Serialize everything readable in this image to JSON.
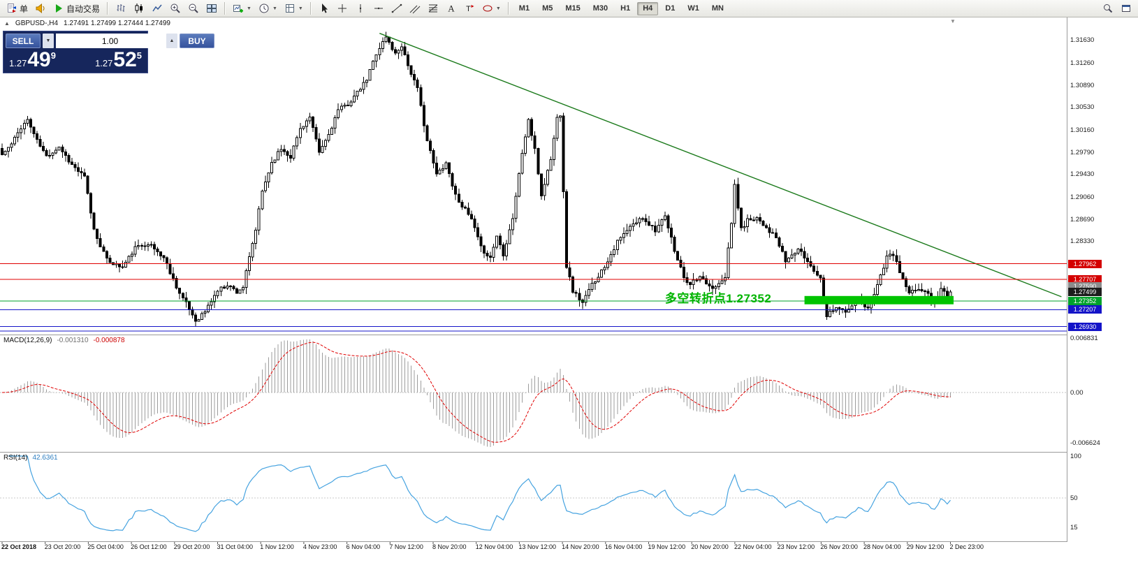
{
  "glyphs": {
    "collapse": "▲",
    "dropdown": "▼",
    "vol_up": "▲",
    "vol_down": "▼",
    "shift_marker": "▼"
  },
  "toolbar": {
    "groups": [
      {
        "name": "trade-group",
        "items": [
          {
            "name": "new-order-button",
            "icon": "new-order-icon",
            "label": "单"
          },
          {
            "name": "alerts-button",
            "icon": "horn-icon"
          },
          {
            "name": "autotrading-button",
            "icon": "play-icon",
            "label": "自动交易"
          }
        ]
      },
      {
        "name": "chart-type-group",
        "items": [
          {
            "name": "bar-chart-button",
            "icon": "bar-chart-icon"
          },
          {
            "name": "candlestick-chart-button",
            "icon": "candlestick-icon"
          },
          {
            "name": "line-chart-button",
            "icon": "line-chart-icon"
          },
          {
            "name": "zoom-in-button",
            "icon": "zoom-in-icon"
          },
          {
            "name": "zoom-out-button",
            "icon": "zoom-out-icon"
          },
          {
            "name": "tile-windows-button",
            "icon": "tile-windows-icon"
          }
        ]
      },
      {
        "name": "chart-manage-group",
        "items": [
          {
            "name": "new-chart-button",
            "icon": "new-chart-icon",
            "dropdown": true
          },
          {
            "name": "profiles-button",
            "icon": "clock-icon",
            "dropdown": true
          },
          {
            "name": "templates-button",
            "icon": "template-icon",
            "dropdown": true
          }
        ]
      },
      {
        "name": "line-studies-group",
        "items": [
          {
            "name": "cursor-button",
            "icon": "cursor-icon"
          },
          {
            "name": "crosshair-button",
            "icon": "crosshair-icon"
          },
          {
            "name": "vertical-line-button",
            "icon": "vline-icon"
          },
          {
            "name": "horizontal-line-button",
            "icon": "hline-icon"
          },
          {
            "name": "trendline-button",
            "icon": "trendline-icon"
          },
          {
            "name": "equidistant-channel-button",
            "icon": "channel-icon"
          },
          {
            "name": "fibonacci-button",
            "icon": "fibo-icon"
          },
          {
            "name": "text-button",
            "icon": "text-icon"
          },
          {
            "name": "text-label-button",
            "icon": "label-icon"
          },
          {
            "name": "arrows-button",
            "icon": "shapes-icon",
            "dropdown": true
          }
        ]
      }
    ],
    "timeframes": [
      "M1",
      "M5",
      "M15",
      "M30",
      "H1",
      "H4",
      "D1",
      "W1",
      "MN"
    ],
    "active_timeframe": "H4",
    "right_items": [
      {
        "name": "search-button",
        "icon": "search-icon"
      },
      {
        "name": "window-list-button",
        "icon": "window-icon"
      }
    ]
  },
  "chart_header": {
    "symbol": "GBPUSD-,H4",
    "ohlc": "1.27491 1.27499 1.27444 1.27499"
  },
  "trade_panel": {
    "sell_label": "SELL",
    "buy_label": "BUY",
    "volume": "1.00",
    "bid": {
      "prefix": "1.27",
      "big": "49",
      "sup": "9"
    },
    "ask": {
      "prefix": "1.27",
      "big": "52",
      "sup": "5"
    }
  },
  "annotation": {
    "text": "多空转折点1.27352",
    "color": "#00b400",
    "bar": 209,
    "price": 1.2756
  },
  "price_axis_labels": [
    "1.31630",
    "1.31260",
    "1.30890",
    "1.30530",
    "1.30160",
    "1.29790",
    "1.29430",
    "1.29060",
    "1.28690",
    "1.28330"
  ],
  "axis_tags": [
    {
      "text": "1.27962",
      "price": 1.27962,
      "bg": "#d40000"
    },
    {
      "text": "1.27707",
      "price": 1.27707,
      "bg": "#d40000"
    },
    {
      "text": "1.27590",
      "price": 1.2759,
      "bg": "#8b8b8b"
    },
    {
      "text": "1.27499",
      "price": 1.27499,
      "bg": "#1c1c1c"
    },
    {
      "text": "1.27352",
      "price": 1.27352,
      "bg": "#00a22b"
    },
    {
      "text": "1.27207",
      "price": 1.27207,
      "bg": "#1414c8"
    },
    {
      "text": "1.26930",
      "price": 1.2693,
      "bg": "#1414c8"
    }
  ],
  "macd_panel": {
    "name": "MACD(12,26,9)",
    "value_main": "-0.001310",
    "value_signal": "-0.000878",
    "axis_top": "0.006831",
    "axis_zero": "0.00",
    "axis_bottom": "-0.006624",
    "histogram_color": "#9c9c9c",
    "signal_color": "#e00000"
  },
  "rsi_panel": {
    "name": "RSI(14)",
    "value": "42.6361",
    "axis": [
      "100",
      "50",
      "15"
    ],
    "line_color": "#46a3e0"
  },
  "time_axis": [
    "22 Oct 2018",
    "23 Oct 20:00",
    "25 Oct 04:00",
    "26 Oct 12:00",
    "29 Oct 20:00",
    "31 Oct 04:00",
    "1 Nov 12:00",
    "4 Nov 23:00",
    "6 Nov 04:00",
    "7 Nov 12:00",
    "8 Nov 20:00",
    "12 Nov 04:00",
    "13 Nov 12:00",
    "14 Nov 20:00",
    "16 Nov 04:00",
    "19 Nov 12:00",
    "20 Nov 20:00",
    "22 Nov 04:00",
    "23 Nov 12:00",
    "26 Nov 20:00",
    "28 Nov 04:00",
    "29 Nov 12:00",
    "2 Dec 23:00"
  ],
  "chart_data": {
    "type": "candlestick",
    "symbol": "GBPUSD",
    "timeframe": "H4",
    "bars": 300,
    "last_close": 1.27499,
    "price_range_top": 1.32,
    "price_range_bottom": 1.268,
    "price_anchors": [
      [
        0,
        1.2975
      ],
      [
        3,
        1.2992
      ],
      [
        6,
        1.302
      ],
      [
        8,
        1.3032
      ],
      [
        11,
        1.2998
      ],
      [
        14,
        1.2972
      ],
      [
        18,
        1.2988
      ],
      [
        22,
        1.2958
      ],
      [
        26,
        1.2938
      ],
      [
        29,
        1.2852
      ],
      [
        33,
        1.2802
      ],
      [
        38,
        1.279
      ],
      [
        42,
        1.2822
      ],
      [
        46,
        1.283
      ],
      [
        51,
        1.2806
      ],
      [
        56,
        1.2748
      ],
      [
        59,
        1.2722
      ],
      [
        61,
        1.2703
      ],
      [
        64,
        1.2718
      ],
      [
        68,
        1.2752
      ],
      [
        71,
        1.2762
      ],
      [
        74,
        1.275
      ],
      [
        76,
        1.2758
      ],
      [
        80,
        1.2852
      ],
      [
        82,
        1.2915
      ],
      [
        85,
        1.2962
      ],
      [
        88,
        1.2985
      ],
      [
        91,
        1.2972
      ],
      [
        94,
        1.3018
      ],
      [
        97,
        1.3036
      ],
      [
        100,
        1.2978
      ],
      [
        103,
        1.3008
      ],
      [
        106,
        1.3048
      ],
      [
        109,
        1.3058
      ],
      [
        112,
        1.3076
      ],
      [
        115,
        1.3098
      ],
      [
        118,
        1.3142
      ],
      [
        121,
        1.3168
      ],
      [
        124,
        1.314
      ],
      [
        126,
        1.3155
      ],
      [
        128,
        1.3122
      ],
      [
        131,
        1.3082
      ],
      [
        134,
        1.2998
      ],
      [
        137,
        1.2942
      ],
      [
        140,
        1.2962
      ],
      [
        143,
        1.2908
      ],
      [
        145,
        1.2892
      ],
      [
        148,
        1.2868
      ],
      [
        151,
        1.2822
      ],
      [
        154,
        1.2806
      ],
      [
        156,
        1.2842
      ],
      [
        158,
        1.2812
      ],
      [
        161,
        1.2872
      ],
      [
        164,
        1.2978
      ],
      [
        166,
        1.3032
      ],
      [
        168,
        1.2982
      ],
      [
        170,
        1.2908
      ],
      [
        173,
        1.2968
      ],
      [
        175,
        1.3035
      ],
      [
        176,
        1.3042
      ],
      [
        178,
        1.2792
      ],
      [
        180,
        1.2752
      ],
      [
        183,
        1.2732
      ],
      [
        186,
        1.2762
      ],
      [
        190,
        1.2792
      ],
      [
        194,
        1.2832
      ],
      [
        198,
        1.2856
      ],
      [
        202,
        1.2872
      ],
      [
        206,
        1.2852
      ],
      [
        209,
        1.2872
      ],
      [
        213,
        1.2802
      ],
      [
        216,
        1.2762
      ],
      [
        220,
        1.2772
      ],
      [
        224,
        1.2756
      ],
      [
        228,
        1.2776
      ],
      [
        230,
        1.2862
      ],
      [
        231,
        1.2926
      ],
      [
        233,
        1.2852
      ],
      [
        235,
        1.2868
      ],
      [
        238,
        1.2872
      ],
      [
        241,
        1.2856
      ],
      [
        244,
        1.2838
      ],
      [
        247,
        1.28
      ],
      [
        251,
        1.282
      ],
      [
        254,
        1.28
      ],
      [
        258,
        1.2772
      ],
      [
        260,
        1.2712
      ],
      [
        263,
        1.2726
      ],
      [
        266,
        1.2716
      ],
      [
        270,
        1.2736
      ],
      [
        273,
        1.2722
      ],
      [
        276,
        1.2762
      ],
      [
        279,
        1.2806
      ],
      [
        281,
        1.2812
      ],
      [
        283,
        1.2782
      ],
      [
        286,
        1.2746
      ],
      [
        289,
        1.2756
      ],
      [
        292,
        1.2746
      ],
      [
        294,
        1.2732
      ],
      [
        296,
        1.2756
      ],
      [
        298,
        1.2742
      ],
      [
        299,
        1.27499
      ]
    ],
    "spike_highs": [
      [
        121,
        1.3176
      ]
    ],
    "spike_lows": [
      [
        61,
        1.2694
      ],
      [
        183,
        1.2722
      ],
      [
        260,
        1.2706
      ]
    ],
    "trendline": {
      "from_bar": 119,
      "from_price": 1.3174,
      "to_bar": 334,
      "to_price": 1.2742,
      "color": "#1b7a1b"
    },
    "hlines": [
      {
        "price": 1.27962,
        "color": "#e00000"
      },
      {
        "price": 1.27707,
        "color": "#e00000"
      },
      {
        "price": 1.27352,
        "color": "#00a22b"
      },
      {
        "price": 1.27207,
        "color": "#1414c8"
      },
      {
        "price": 1.2693,
        "color": "#1414c8"
      },
      {
        "price": 1.2686,
        "color": "#1414c8"
      }
    ],
    "highlight_zone": {
      "from_bar": 253,
      "to_bar": 300,
      "price_top": 1.27432,
      "price_bottom": 1.27296,
      "color": "#00c400"
    },
    "indicators": [
      {
        "name": "MACD",
        "params": "12,26,9",
        "shown_values": [
          "-0.001310",
          "-0.000878"
        ]
      },
      {
        "name": "RSI",
        "params": "14",
        "shown_values": [
          "42.6361"
        ]
      }
    ]
  }
}
